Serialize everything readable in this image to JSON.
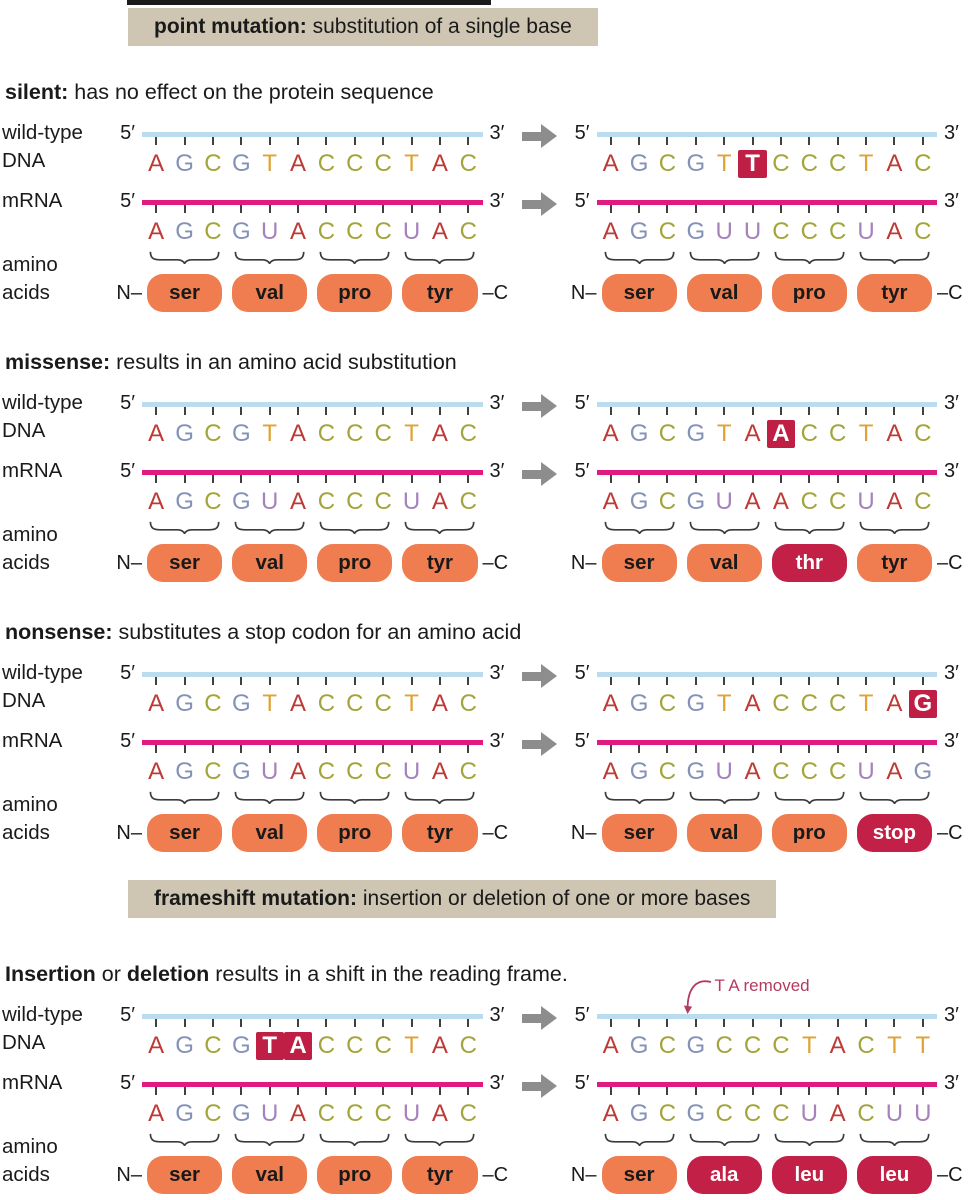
{
  "banners": [
    {
      "bold": "point mutation:",
      "rest": " substitution of a single base"
    },
    {
      "bold": "frameshift mutation:",
      "rest": " insertion or deletion of one or more bases"
    }
  ],
  "strand_labels": {
    "five_prime": "5′",
    "three_prime": "3′"
  },
  "terminals": {
    "n": "N–",
    "c": "–C"
  },
  "row_labels": {
    "dna_line1": "wild-type",
    "dna_line2": "DNA",
    "mrna": "mRNA",
    "amino_line1": "amino",
    "amino_line2": "acids"
  },
  "colors": {
    "base_A": "#bd3a35",
    "base_G": "#8492b8",
    "base_C": "#a4a43c",
    "base_T": "#dfa233",
    "base_U": "#a682bd",
    "dna_line": "#badcee",
    "mrna_line": "#e01a81",
    "highlight": "#bf1f44",
    "amino_normal": "#ef7d4f",
    "amino_mutant": "#c22047",
    "banner_bg": "#cec6b3",
    "arrow": "#8d8d8d",
    "tick": "#404040",
    "annotation": "#b43b60",
    "brace": "#3b3b3b"
  },
  "sections": [
    {
      "group": "a",
      "title": [
        {
          "text": "silent:",
          "bold": true
        },
        {
          "text": " has no effect on the protein sequence",
          "bold": false
        }
      ],
      "panels": [
        {
          "dna": "AGCGTACCCTAC",
          "dna_highlights": [],
          "mrna": "AGCGUACCCUAC",
          "mrna_highlights": [],
          "amino_acids": [
            {
              "label": "ser",
              "mutant": false
            },
            {
              "label": "val",
              "mutant": false
            },
            {
              "label": "pro",
              "mutant": false
            },
            {
              "label": "tyr",
              "mutant": false
            }
          ]
        },
        {
          "dna": "AGCGTTCCCTAC",
          "dna_highlights": [
            5
          ],
          "mrna": "AGCGUUCCCUAC",
          "mrna_highlights": [],
          "amino_acids": [
            {
              "label": "ser",
              "mutant": false
            },
            {
              "label": "val",
              "mutant": false
            },
            {
              "label": "pro",
              "mutant": false
            },
            {
              "label": "tyr",
              "mutant": false
            }
          ]
        }
      ]
    },
    {
      "group": "a",
      "title": [
        {
          "text": "missense:",
          "bold": true
        },
        {
          "text": " results in an amino acid substitution",
          "bold": false
        }
      ],
      "panels": [
        {
          "dna": "AGCGTACCCTAC",
          "dna_highlights": [],
          "mrna": "AGCGUACCCUAC",
          "mrna_highlights": [],
          "amino_acids": [
            {
              "label": "ser",
              "mutant": false
            },
            {
              "label": "val",
              "mutant": false
            },
            {
              "label": "pro",
              "mutant": false
            },
            {
              "label": "tyr",
              "mutant": false
            }
          ]
        },
        {
          "dna": "AGCGTAACCTAC",
          "dna_highlights": [
            6
          ],
          "mrna": "AGCGUAACCUAC",
          "mrna_highlights": [],
          "amino_acids": [
            {
              "label": "ser",
              "mutant": false
            },
            {
              "label": "val",
              "mutant": false
            },
            {
              "label": "thr",
              "mutant": true
            },
            {
              "label": "tyr",
              "mutant": false
            }
          ]
        }
      ]
    },
    {
      "group": "a",
      "title": [
        {
          "text": "nonsense:",
          "bold": true
        },
        {
          "text": " substitutes a stop codon for an amino acid",
          "bold": false
        }
      ],
      "panels": [
        {
          "dna": "AGCGTACCCTAC",
          "dna_highlights": [],
          "mrna": "AGCGUACCCUAC",
          "mrna_highlights": [],
          "amino_acids": [
            {
              "label": "ser",
              "mutant": false
            },
            {
              "label": "val",
              "mutant": false
            },
            {
              "label": "pro",
              "mutant": false
            },
            {
              "label": "tyr",
              "mutant": false
            }
          ]
        },
        {
          "dna": "AGCGTACCCTAG",
          "dna_highlights": [
            11
          ],
          "mrna": "AGCGUACCCUAG",
          "mrna_highlights": [],
          "amino_acids": [
            {
              "label": "ser",
              "mutant": false
            },
            {
              "label": "val",
              "mutant": false
            },
            {
              "label": "pro",
              "mutant": false
            },
            {
              "label": "stop",
              "mutant": true
            }
          ]
        }
      ]
    },
    {
      "group": "b",
      "title": [
        {
          "text": "Insertion",
          "bold": true
        },
        {
          "text": " or ",
          "bold": false
        },
        {
          "text": "deletion",
          "bold": true
        },
        {
          "text": " results in a shift in the reading frame.",
          "bold": false
        }
      ],
      "annotation": {
        "text": "T A removed",
        "panel": 1
      },
      "panels": [
        {
          "dna": "AGCGTACCCTAC",
          "dna_highlights": [
            4,
            5
          ],
          "mrna": "AGCGUACCCUAC",
          "mrna_highlights": [],
          "amino_acids": [
            {
              "label": "ser",
              "mutant": false
            },
            {
              "label": "val",
              "mutant": false
            },
            {
              "label": "pro",
              "mutant": false
            },
            {
              "label": "tyr",
              "mutant": false
            }
          ]
        },
        {
          "dna": "AGCGCCCTACTT",
          "dna_highlights": [],
          "mrna": "AGCGCCCUACUU",
          "mrna_highlights": [],
          "amino_acids": [
            {
              "label": "ser",
              "mutant": false
            },
            {
              "label": "ala",
              "mutant": true
            },
            {
              "label": "leu",
              "mutant": true
            },
            {
              "label": "leu",
              "mutant": true
            }
          ]
        }
      ]
    }
  ]
}
